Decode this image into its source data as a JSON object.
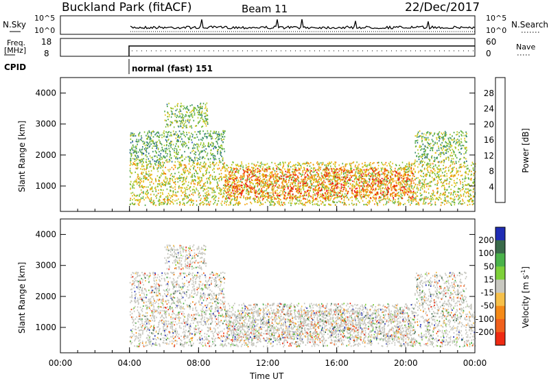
{
  "header": {
    "title": "Buckland Park (fitACF)",
    "beam": "Beam 11",
    "date": "22/Dec/2017"
  },
  "top_panels": {
    "nsky_label": "N.Sky",
    "nsky_ticks": [
      "10^5",
      "10^0"
    ],
    "nsearch_label": "N.Search",
    "nsearch_ticks": [
      "10^5",
      "10^0"
    ],
    "freq_label": [
      "Freq.",
      "[MHz]"
    ],
    "freq_ticks": [
      "18",
      "8"
    ],
    "nave_label": "Nave",
    "nave_ticks": [
      "60",
      "0"
    ],
    "cpid_label": "CPID",
    "cpid_text": "normal (fast) 151"
  },
  "chart_data": [
    {
      "type": "heatmap",
      "name": "power",
      "ylabel": "Slant Range [km]",
      "yticks": [
        "4000",
        "3000",
        "2000",
        "1000"
      ],
      "ylim": [
        180,
        4500
      ],
      "xlim_hours": [
        0,
        24
      ],
      "colorbar": {
        "label": "Power [dB]",
        "ticks": [
          "28",
          "24",
          "20",
          "16",
          "12",
          "8",
          "4"
        ],
        "range": [
          0,
          32
        ],
        "colors": [
          "#0018ff",
          "#1d4cb0",
          "#2b6e8a",
          "#3a8f6a",
          "#50a84a",
          "#7fbf3a",
          "#b8cc2e",
          "#e7c21a",
          "#f2a30f",
          "#f47a10",
          "#f04a10",
          "#ee1010"
        ]
      },
      "bands": [
        {
          "t0": 4.0,
          "t1": 24.0,
          "r0": 400,
          "r1": 1800,
          "power": 18
        },
        {
          "t0": 9.5,
          "t1": 20.5,
          "r0": 600,
          "r1": 1600,
          "power": 26
        },
        {
          "t0": 4.0,
          "t1": 9.5,
          "r0": 1800,
          "r1": 2800,
          "power": 12
        },
        {
          "t0": 6.0,
          "t1": 8.5,
          "r0": 2900,
          "r1": 3700,
          "power": 14
        },
        {
          "t0": 20.5,
          "t1": 23.5,
          "r0": 1800,
          "r1": 2800,
          "power": 14
        }
      ]
    },
    {
      "type": "heatmap",
      "name": "velocity",
      "ylabel": "Slant Range [km]",
      "yticks": [
        "4000",
        "3000",
        "2000",
        "1000"
      ],
      "ylim": [
        180,
        4500
      ],
      "xlim_hours": [
        0,
        24
      ],
      "xticks": [
        "00:00",
        "04:00",
        "08:00",
        "12:00",
        "16:00",
        "20:00",
        "00:00"
      ],
      "xlabel": "Time UT",
      "colorbar": {
        "label": "Velocity [m s",
        "label_sup": "-1",
        "label_end": "]",
        "ticks": [
          "200",
          "100",
          "50",
          "15",
          "-15",
          "-50",
          "-100",
          "-200"
        ],
        "colors": [
          "#1f2cb4",
          "#3a6a4a",
          "#4ab24a",
          "#7ed03a",
          "#c8c8c0",
          "#f6c04a",
          "#f58a18",
          "#f0601c",
          "#ef2a12"
        ]
      },
      "bands": [
        {
          "t0": 4.0,
          "t1": 24.0,
          "r0": 400,
          "r1": 1800,
          "velocity": 0
        },
        {
          "t0": 9.5,
          "t1": 20.5,
          "r0": 600,
          "r1": 1600,
          "velocity": 0
        },
        {
          "t0": 4.0,
          "t1": 9.5,
          "r0": 1800,
          "r1": 2800,
          "velocity": 20
        },
        {
          "t0": 6.0,
          "t1": 8.5,
          "r0": 2900,
          "r1": 3700,
          "velocity": -40
        },
        {
          "t0": 20.5,
          "t1": 23.5,
          "r0": 1800,
          "r1": 2800,
          "velocity": 10
        }
      ]
    }
  ]
}
